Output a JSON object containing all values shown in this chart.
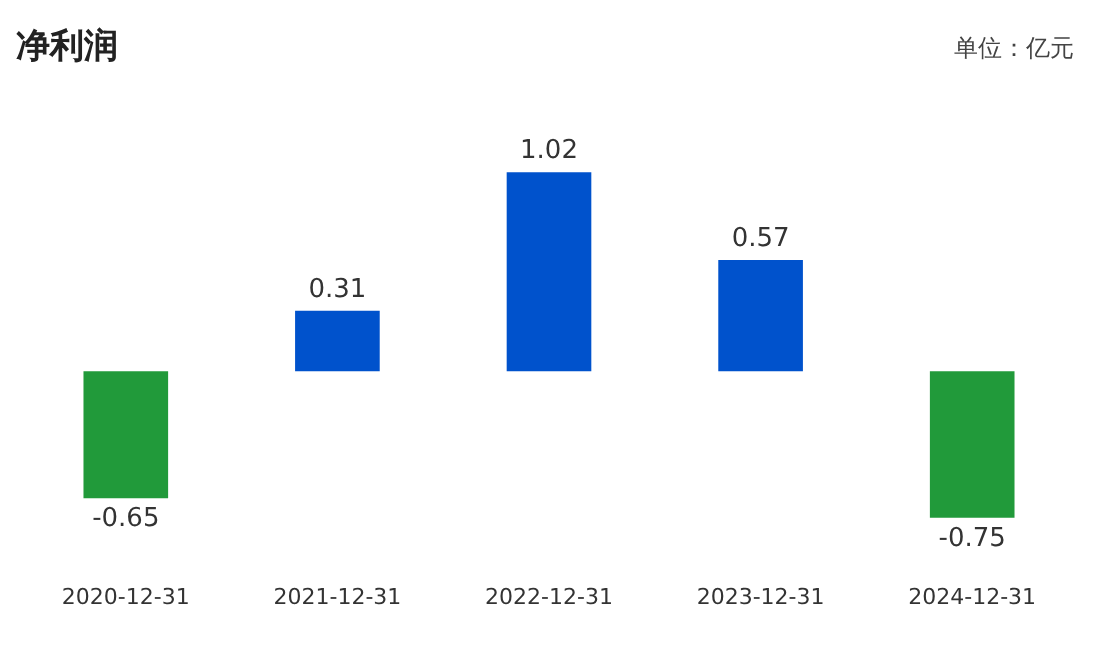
{
  "chart_data": {
    "type": "bar",
    "title": "净利润",
    "annotations": [
      "单位：亿元"
    ],
    "categories": [
      "2020-12-31",
      "2021-12-31",
      "2022-12-31",
      "2023-12-31",
      "2024-12-31"
    ],
    "values": [
      -0.65,
      0.31,
      1.02,
      0.57,
      -0.75
    ],
    "colors": [
      "#219a3a",
      "#0052cc",
      "#0052cc",
      "#0052cc",
      "#219a3a"
    ],
    "data_labels": true,
    "tick_labels": "x"
  }
}
